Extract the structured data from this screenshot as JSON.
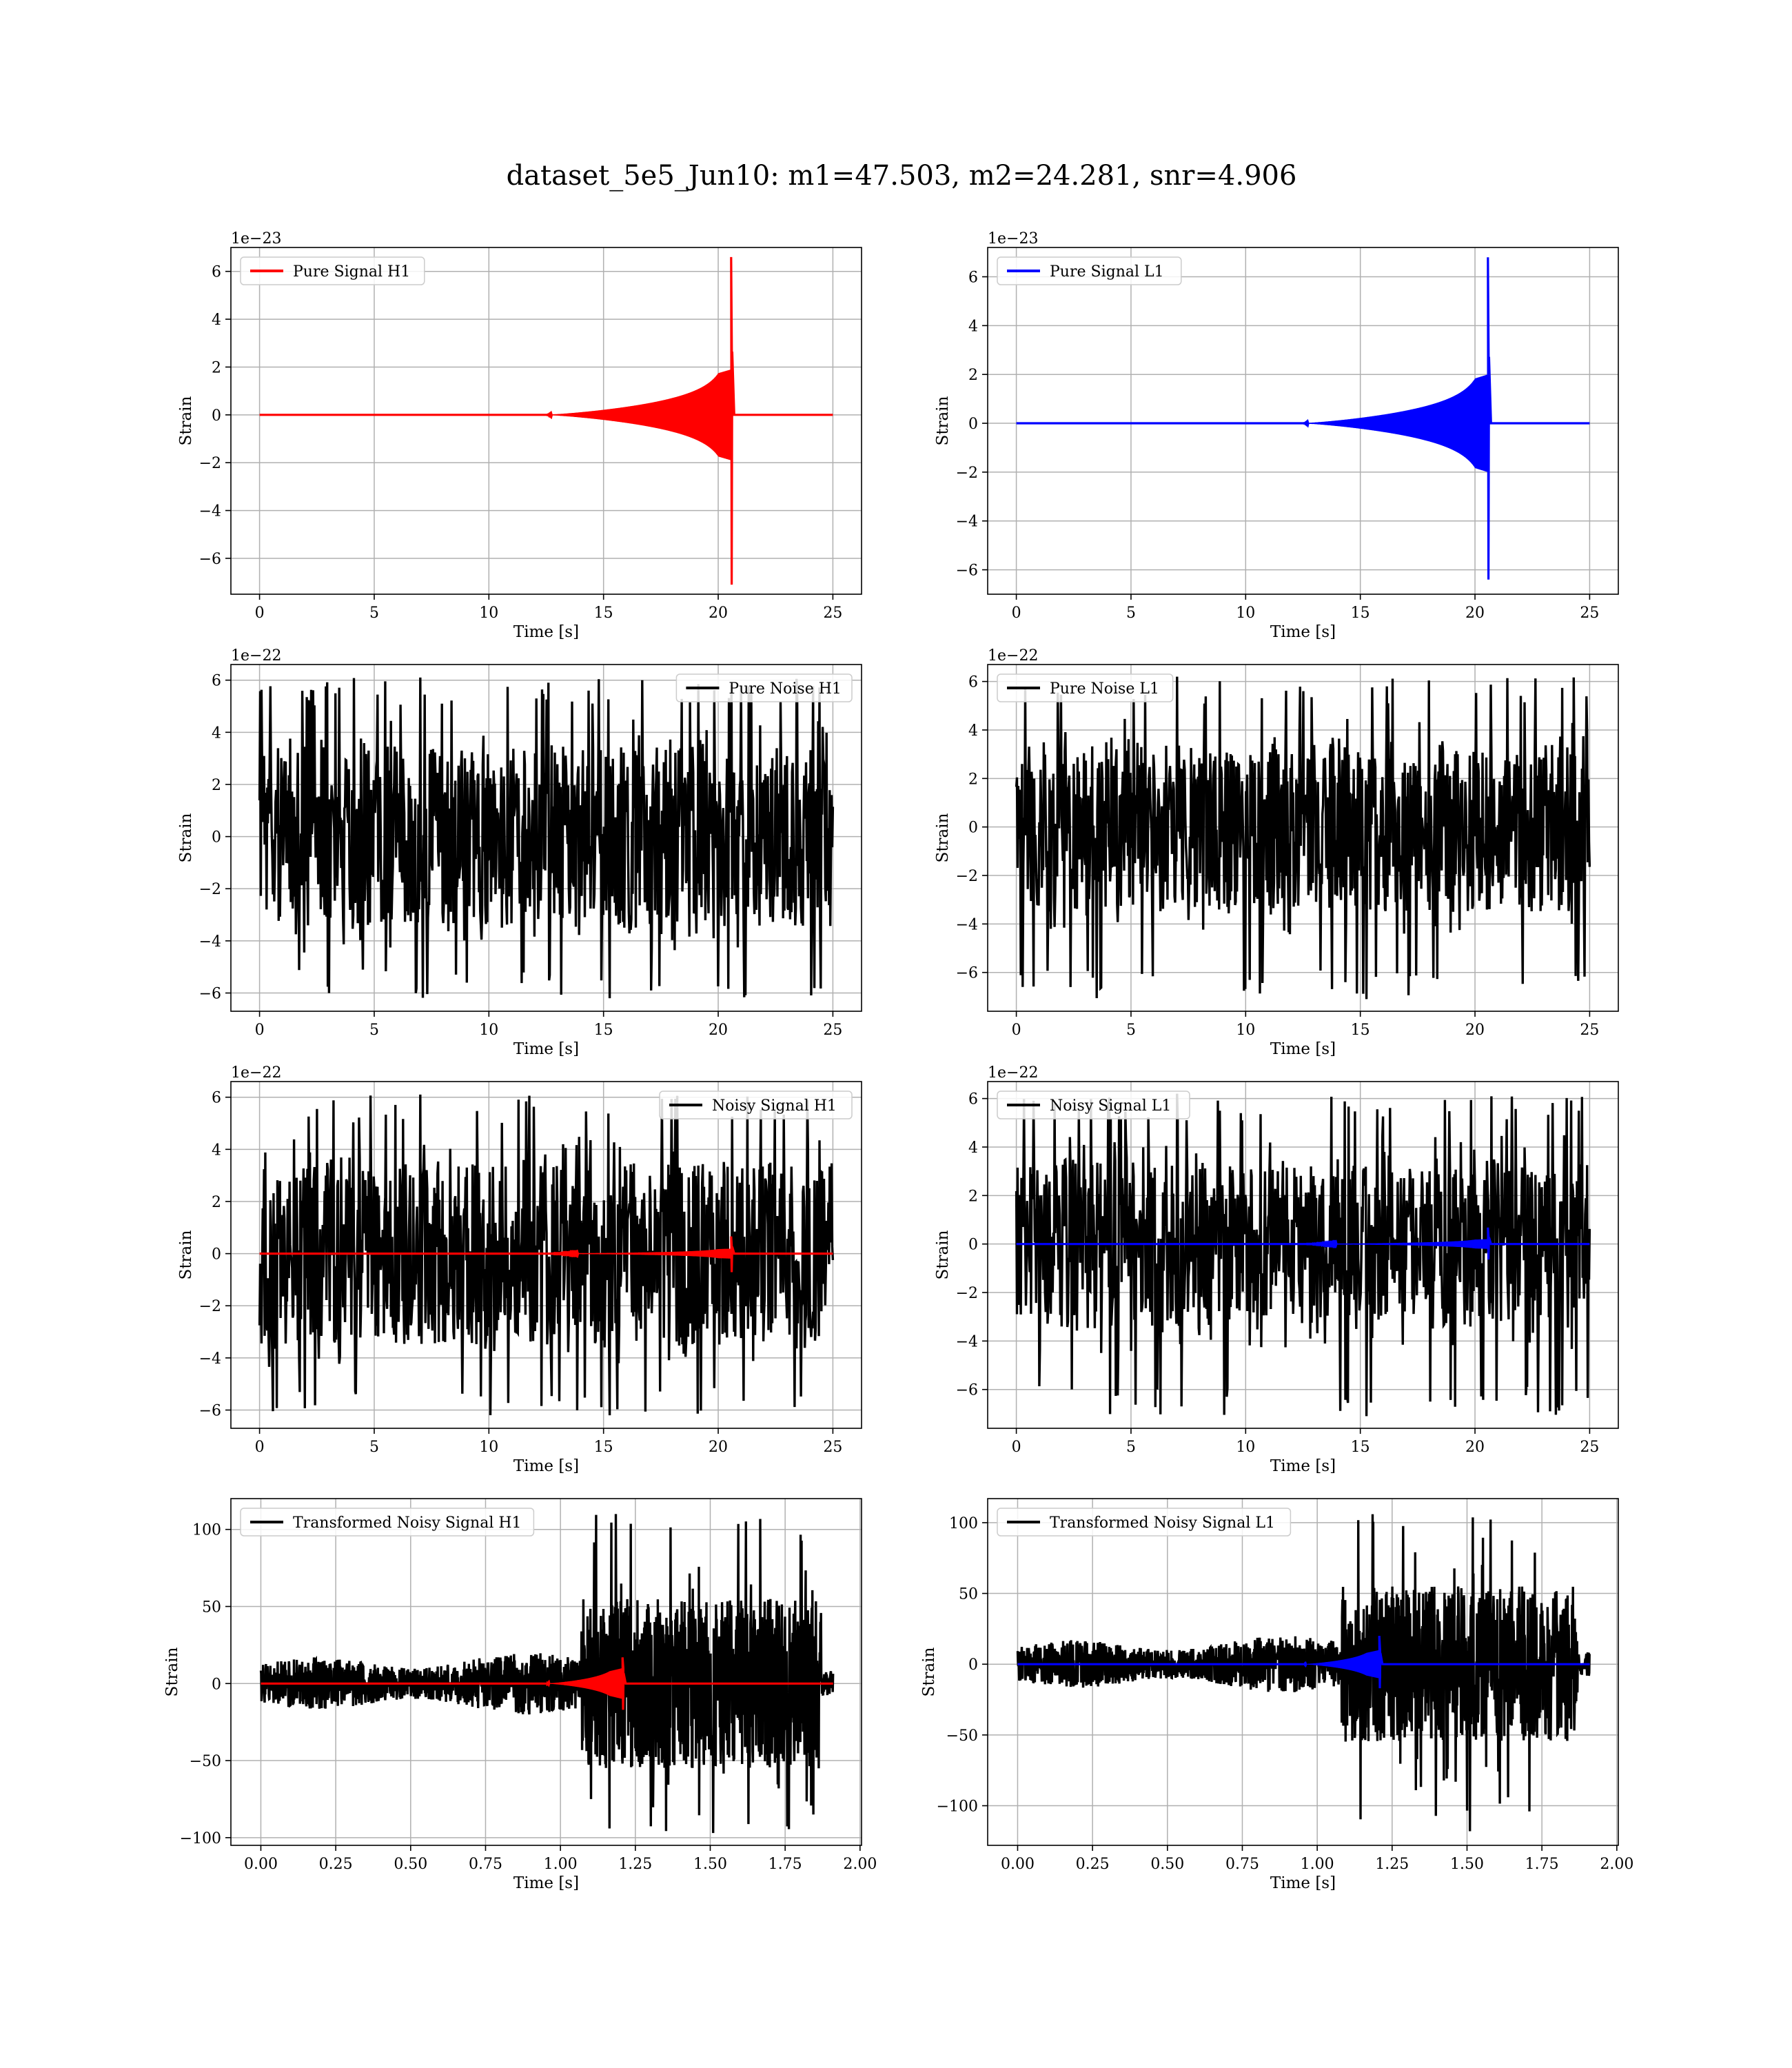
{
  "figure_title": "dataset_5e5_Jun10: m1=47.503, m2=24.281, snr=4.906",
  "colors": {
    "h1": "#ff0000",
    "l1": "#0000ff",
    "noise": "#000000"
  },
  "chart_data": [
    {
      "type": "line",
      "panel": "pure-signal-h1",
      "legend": [
        "Pure Signal H1"
      ],
      "legend_position": "top-left",
      "xlabel": "Time [s]",
      "ylabel": "Strain",
      "offset": "1e−23",
      "xlim": [
        -1.25,
        26.25
      ],
      "ylim": [
        -7.5,
        7.0
      ],
      "xticks": [
        0,
        5,
        10,
        15,
        20,
        25
      ],
      "yticks": [
        -6,
        -4,
        -2,
        0,
        2,
        4,
        6
      ],
      "grid": true,
      "series": [
        {
          "name": "Pure Signal H1",
          "color": "#ff0000",
          "kind": "chirp",
          "t_start": 0,
          "t_end": 25,
          "t_merger": 20.6,
          "max": 6.6,
          "min": -7.1,
          "pre_merger_amp": 1.9
        }
      ]
    },
    {
      "type": "line",
      "panel": "pure-signal-l1",
      "legend": [
        "Pure Signal L1"
      ],
      "legend_position": "top-left",
      "xlabel": "Time [s]",
      "ylabel": "Strain",
      "offset": "1e−23",
      "xlim": [
        -1.25,
        26.25
      ],
      "ylim": [
        -7.0,
        7.2
      ],
      "xticks": [
        0,
        5,
        10,
        15,
        20,
        25
      ],
      "yticks": [
        -6,
        -4,
        -2,
        0,
        2,
        4,
        6
      ],
      "grid": true,
      "series": [
        {
          "name": "Pure Signal L1",
          "color": "#0000ff",
          "kind": "chirp",
          "t_start": 0,
          "t_end": 25,
          "t_merger": 20.6,
          "max": 6.8,
          "min": -6.4,
          "pre_merger_amp": 2.0
        }
      ]
    },
    {
      "type": "line",
      "panel": "pure-noise-h1",
      "legend": [
        "Pure Noise H1"
      ],
      "legend_position": "top-right",
      "xlabel": "Time [s]",
      "ylabel": "Strain",
      "offset": "1e−22",
      "xlim": [
        -1.25,
        26.25
      ],
      "ylim": [
        -6.7,
        6.6
      ],
      "xticks": [
        0,
        5,
        10,
        15,
        20,
        25
      ],
      "yticks": [
        -6,
        -4,
        -2,
        0,
        2,
        4,
        6
      ],
      "grid": true,
      "series": [
        {
          "name": "Pure Noise H1",
          "color": "#000000",
          "kind": "noise",
          "t_start": 0,
          "t_end": 25,
          "max": 6.1,
          "min": -6.2,
          "core": 3.5
        }
      ]
    },
    {
      "type": "line",
      "panel": "pure-noise-l1",
      "legend": [
        "Pure Noise L1"
      ],
      "legend_position": "top-left",
      "xlabel": "Time [s]",
      "ylabel": "Strain",
      "offset": "1e−22",
      "xlim": [
        -1.25,
        26.25
      ],
      "ylim": [
        -7.6,
        6.7
      ],
      "xticks": [
        0,
        5,
        10,
        15,
        20,
        25
      ],
      "yticks": [
        -6,
        -4,
        -2,
        0,
        2,
        4,
        6
      ],
      "grid": true,
      "series": [
        {
          "name": "Pure Noise L1",
          "color": "#000000",
          "kind": "noise",
          "t_start": 0,
          "t_end": 25,
          "max": 6.2,
          "min": -7.1,
          "core": 3.5
        }
      ]
    },
    {
      "type": "line",
      "panel": "noisy-signal-h1",
      "legend": [
        "Noisy Signal H1"
      ],
      "legend_position": "top-right",
      "xlabel": "Time [s]",
      "ylabel": "Strain",
      "offset": "1e−22",
      "xlim": [
        -1.25,
        26.25
      ],
      "ylim": [
        -6.7,
        6.6
      ],
      "xticks": [
        0,
        5,
        10,
        15,
        20,
        25
      ],
      "yticks": [
        -6,
        -4,
        -2,
        0,
        2,
        4,
        6
      ],
      "grid": true,
      "series": [
        {
          "name": "Noisy Signal H1",
          "color": "#000000",
          "kind": "noise",
          "t_start": 0,
          "t_end": 25,
          "max": 6.1,
          "min": -6.2,
          "core": 3.5
        },
        {
          "name": "",
          "color": "#ff0000",
          "kind": "chirp",
          "t_start": 0,
          "t_end": 25,
          "t_merger": 20.6,
          "max": 0.66,
          "min": -0.71,
          "pre_merger_amp": 0.19
        }
      ]
    },
    {
      "type": "line",
      "panel": "noisy-signal-l1",
      "legend": [
        "Noisy Signal L1"
      ],
      "legend_position": "top-left",
      "xlabel": "Time [s]",
      "ylabel": "Strain",
      "offset": "1e−22",
      "xlim": [
        -1.25,
        26.25
      ],
      "ylim": [
        -7.6,
        6.7
      ],
      "xticks": [
        0,
        5,
        10,
        15,
        20,
        25
      ],
      "yticks": [
        -6,
        -4,
        -2,
        0,
        2,
        4,
        6
      ],
      "grid": true,
      "series": [
        {
          "name": "Noisy Signal L1",
          "color": "#000000",
          "kind": "noise",
          "t_start": 0,
          "t_end": 25,
          "max": 6.2,
          "min": -7.1,
          "core": 3.5
        },
        {
          "name": "",
          "color": "#0000ff",
          "kind": "chirp",
          "t_start": 0,
          "t_end": 25,
          "t_merger": 20.6,
          "max": 0.68,
          "min": -0.64,
          "pre_merger_amp": 0.2
        }
      ]
    },
    {
      "type": "line",
      "panel": "transformed-noisy-signal-h1",
      "legend": [
        "Transformed Noisy Signal H1"
      ],
      "legend_position": "top-left",
      "xlabel": "Time [s]",
      "ylabel": "Strain",
      "offset": "",
      "xlim": [
        -0.1,
        2.005
      ],
      "ylim": [
        -105,
        120
      ],
      "xticks": [
        0.0,
        0.25,
        0.5,
        0.75,
        1.0,
        1.25,
        1.5,
        1.75,
        2.0
      ],
      "yticks": [
        -100,
        -50,
        0,
        50,
        100
      ],
      "grid": true,
      "series": [
        {
          "name": "Transformed Noisy Signal H1",
          "color": "#000000",
          "kind": "whitened",
          "t_start": 0,
          "t_end": 1.91,
          "t_rise": 1.07,
          "t_drop": 1.87,
          "max": 110,
          "min": -97,
          "early_amp": 12,
          "late_amp": 55
        },
        {
          "name": "",
          "color": "#ff0000",
          "kind": "chirp",
          "t_start": 0,
          "t_end": 1.91,
          "t_merger": 1.21,
          "max": 17,
          "min": -17,
          "pre_merger_amp": 10
        }
      ]
    },
    {
      "type": "line",
      "panel": "transformed-noisy-signal-l1",
      "legend": [
        "Transformed Noisy Signal L1"
      ],
      "legend_position": "top-left",
      "xlabel": "Time [s]",
      "ylabel": "Strain",
      "offset": "",
      "xlim": [
        -0.1,
        2.005
      ],
      "ylim": [
        -128,
        117
      ],
      "xticks": [
        0.0,
        0.25,
        0.5,
        0.75,
        1.0,
        1.25,
        1.5,
        1.75,
        2.0
      ],
      "yticks": [
        -100,
        -50,
        0,
        50,
        100
      ],
      "grid": true,
      "series": [
        {
          "name": "Transformed Noisy Signal L1",
          "color": "#000000",
          "kind": "whitened",
          "t_start": 0,
          "t_end": 1.91,
          "t_rise": 1.08,
          "t_drop": 1.87,
          "max": 106,
          "min": -118,
          "early_amp": 12,
          "late_amp": 55
        },
        {
          "name": "",
          "color": "#0000ff",
          "kind": "chirp",
          "t_start": 0,
          "t_end": 1.91,
          "t_merger": 1.21,
          "max": 20,
          "min": -17,
          "pre_merger_amp": 10
        }
      ]
    }
  ]
}
